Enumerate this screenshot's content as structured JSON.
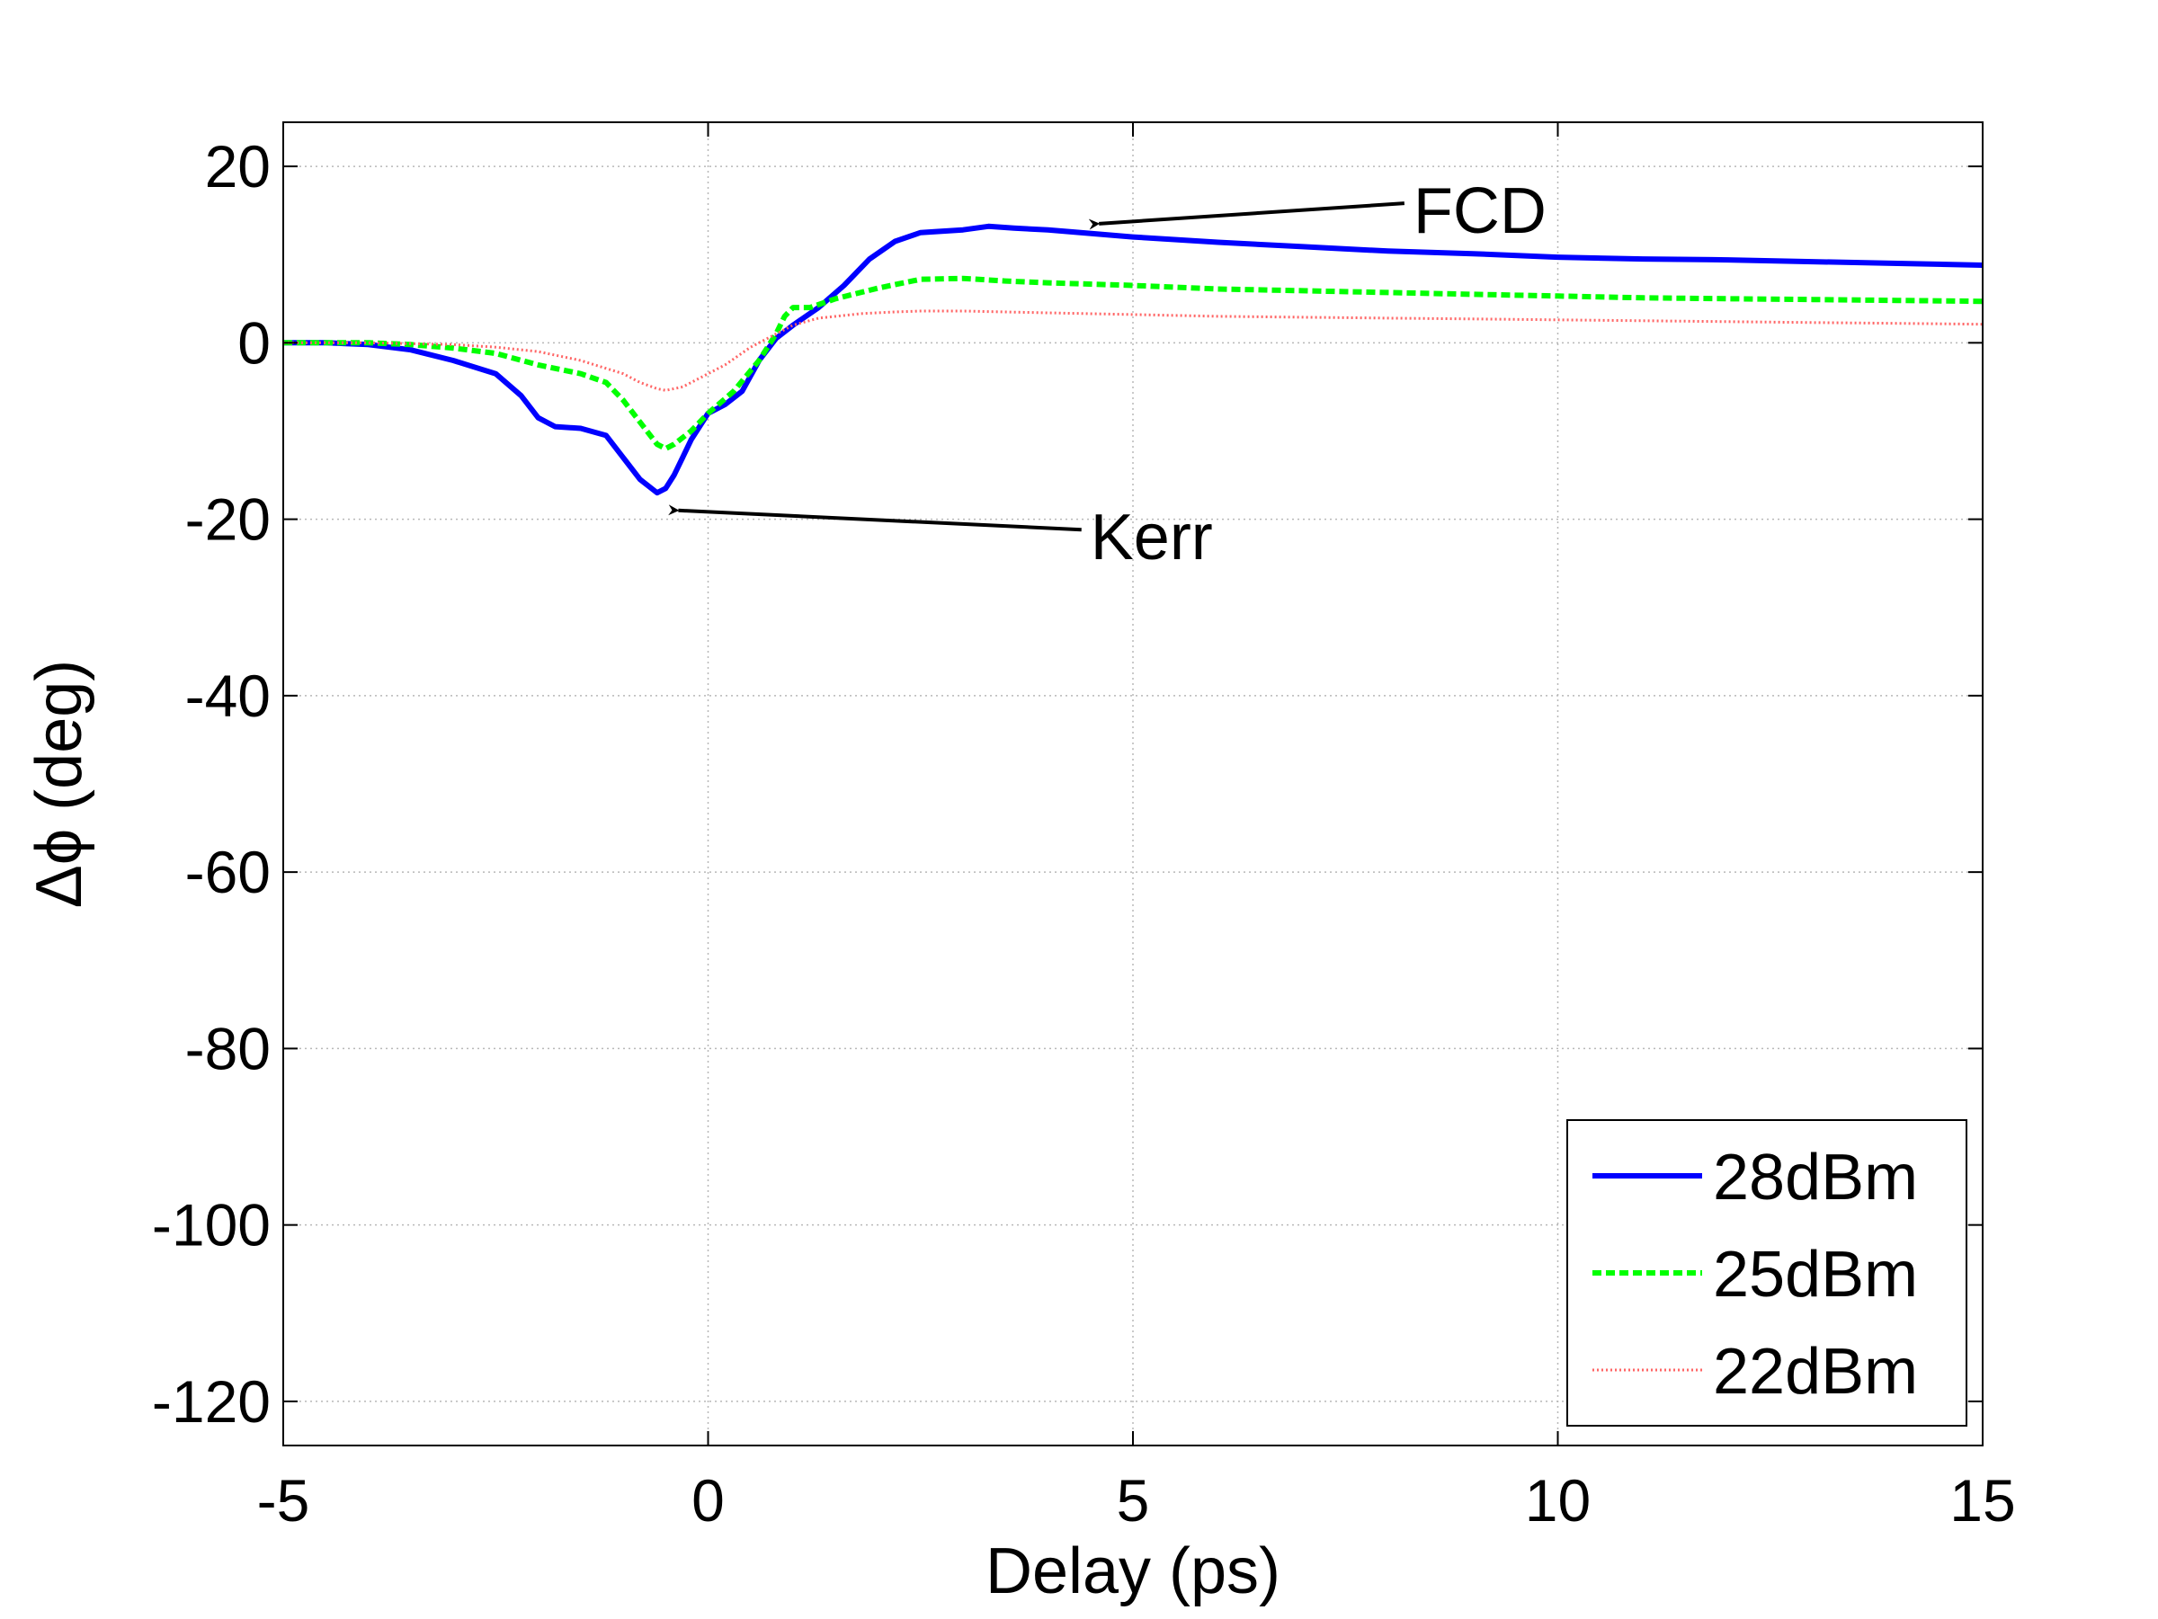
{
  "chart_data": {
    "type": "line",
    "xlabel": "Delay (ps)",
    "ylabel": "Δϕ (deg)",
    "xlim": [
      -5,
      15
    ],
    "ylim": [
      -125,
      25
    ],
    "xticks": [
      -5,
      0,
      5,
      10,
      15
    ],
    "xtick_labels": [
      "-5",
      "0",
      "5",
      "10",
      "15"
    ],
    "yticks": [
      20,
      0,
      -20,
      -40,
      -60,
      -80,
      -100,
      -120
    ],
    "ytick_labels": [
      "20",
      "0",
      "-20",
      "-40",
      "-60",
      "-80",
      "-100",
      "-120"
    ],
    "grid": true,
    "legend_position": "bottom-right",
    "series": [
      {
        "name": "28dBm",
        "color": "#0000ff",
        "style": "solid",
        "x": [
          -5,
          -4.5,
          -4,
          -3.5,
          -3,
          -2.5,
          -2.2,
          -2,
          -1.8,
          -1.5,
          -1.2,
          -1,
          -0.8,
          -0.6,
          -0.5,
          -0.4,
          -0.3,
          -0.2,
          0,
          0.2,
          0.4,
          0.6,
          0.8,
          1,
          1.3,
          1.6,
          1.9,
          2.2,
          2.5,
          3,
          3.3,
          3.6,
          4,
          5,
          6,
          7,
          8,
          9,
          10,
          11,
          12,
          13,
          14,
          15
        ],
        "y": [
          0,
          0,
          -0.2,
          -0.8,
          -2,
          -3.5,
          -6,
          -8.5,
          -9.5,
          -9.7,
          -10.5,
          -13,
          -15.5,
          -17,
          -16.5,
          -15,
          -13,
          -11,
          -8,
          -7,
          -5.5,
          -2,
          0.5,
          2,
          4,
          6.5,
          9.5,
          11.5,
          12.5,
          12.8,
          13.2,
          13,
          12.8,
          12,
          11.4,
          10.9,
          10.4,
          10.1,
          9.7,
          9.5,
          9.4,
          9.2,
          9.0,
          8.8
        ]
      },
      {
        "name": "25dBm",
        "color": "#00ff00",
        "style": "dashed",
        "x": [
          -5,
          -4.5,
          -4,
          -3.5,
          -3,
          -2.5,
          -2,
          -1.5,
          -1.2,
          -1,
          -0.8,
          -0.6,
          -0.5,
          -0.4,
          -0.2,
          0,
          0.3,
          0.6,
          0.8,
          0.9,
          1,
          1.2,
          1.5,
          2,
          2.5,
          3,
          3.5,
          4,
          5,
          6,
          7,
          8,
          9,
          10,
          11,
          12,
          13,
          14,
          15
        ],
        "y": [
          0,
          0,
          0,
          -0.2,
          -0.6,
          -1.2,
          -2.5,
          -3.5,
          -4.5,
          -6.5,
          -9,
          -11.5,
          -12,
          -11.5,
          -10,
          -8,
          -5.5,
          -2,
          1,
          3,
          4,
          4,
          5,
          6.2,
          7.2,
          7.3,
          7.0,
          6.8,
          6.5,
          6.1,
          5.9,
          5.7,
          5.5,
          5.3,
          5.1,
          5.0,
          4.9,
          4.8,
          4.7
        ]
      },
      {
        "name": "22dBm",
        "color": "#ff6666",
        "style": "dotted",
        "x": [
          -5,
          -4,
          -3,
          -2.5,
          -2,
          -1.5,
          -1,
          -0.8,
          -0.6,
          -0.5,
          -0.3,
          -0.1,
          0.2,
          0.5,
          0.8,
          1,
          1.3,
          1.8,
          2.2,
          2.5,
          3,
          3.5,
          4,
          5,
          6,
          7,
          8,
          9,
          10,
          11,
          12,
          13,
          14,
          15
        ],
        "y": [
          0,
          0,
          -0.2,
          -0.5,
          -1,
          -2,
          -3.5,
          -4.5,
          -5.2,
          -5.4,
          -5,
          -4,
          -2.5,
          -0.5,
          1,
          2,
          2.8,
          3.3,
          3.5,
          3.6,
          3.6,
          3.5,
          3.4,
          3.2,
          3.0,
          2.9,
          2.8,
          2.7,
          2.6,
          2.5,
          2.4,
          2.3,
          2.2,
          2.1
        ]
      }
    ],
    "annotations": [
      {
        "text": "FCD",
        "arrow_to": [
          4.6,
          13.5
        ],
        "text_at": [
          8.3,
          15
        ]
      },
      {
        "text": "Kerr",
        "arrow_to": [
          -0.35,
          -19
        ],
        "text_at": [
          4.5,
          -22
        ]
      }
    ]
  }
}
